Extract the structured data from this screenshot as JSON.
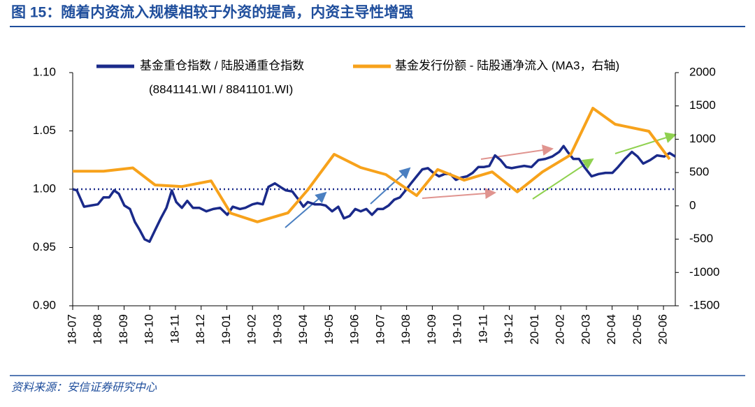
{
  "chart_data": {
    "type": "line",
    "title": "图 15：随着内资流入规模相较于外资的提高，内资主导性增强",
    "source": "资料来源：安信证券研究中心",
    "legend_note": "(8841141.WI / 8841101.WI)",
    "xlim": [
      0,
      23.46
    ],
    "xticks": [
      {
        "value": 0,
        "label": "18-07"
      },
      {
        "value": 1,
        "label": "18-08"
      },
      {
        "value": 2,
        "label": "18-09"
      },
      {
        "value": 3,
        "label": "18-10"
      },
      {
        "value": 4,
        "label": "18-11"
      },
      {
        "value": 5,
        "label": "18-12"
      },
      {
        "value": 6,
        "label": "19-01"
      },
      {
        "value": 7,
        "label": "19-02"
      },
      {
        "value": 8,
        "label": "19-03"
      },
      {
        "value": 9,
        "label": "19-04"
      },
      {
        "value": 10,
        "label": "19-05"
      },
      {
        "value": 11,
        "label": "19-06"
      },
      {
        "value": 12,
        "label": "19-07"
      },
      {
        "value": 13,
        "label": "19-08"
      },
      {
        "value": 14,
        "label": "19-09"
      },
      {
        "value": 15,
        "label": "19-10"
      },
      {
        "value": 16,
        "label": "19-11"
      },
      {
        "value": 17,
        "label": "19-12"
      },
      {
        "value": 18,
        "label": "20-01"
      },
      {
        "value": 19,
        "label": "20-02"
      },
      {
        "value": 20,
        "label": "20-03"
      },
      {
        "value": 21,
        "label": "20-04"
      },
      {
        "value": 22,
        "label": "20-05"
      },
      {
        "value": 23,
        "label": "20-06"
      }
    ],
    "ylim": [
      0.9,
      1.1
    ],
    "yticks": [
      {
        "value": 0.9,
        "label": "0.90"
      },
      {
        "value": 0.95,
        "label": "0.95"
      },
      {
        "value": 1.0,
        "label": "1.00"
      },
      {
        "value": 1.05,
        "label": "1.05"
      },
      {
        "value": 1.1,
        "label": "1.10"
      }
    ],
    "y2lim": [
      -1500,
      2000
    ],
    "y2ticks": [
      -1500,
      -1000,
      -500,
      0,
      500,
      1000,
      1500,
      2000
    ],
    "reference_line": 1.0,
    "series": [
      {
        "name": "基金重仓指数 / 陆股通重仓指数",
        "color": "#1a2a8a",
        "axis": "y",
        "x": [
          0,
          0.16,
          0.44,
          0.71,
          0.98,
          1.2,
          1.42,
          1.61,
          1.8,
          2.01,
          2.23,
          2.42,
          2.61,
          2.8,
          2.99,
          3.21,
          3.43,
          3.65,
          3.86,
          4.03,
          4.25,
          4.46,
          4.68,
          4.93,
          5.2,
          5.47,
          5.74,
          6.02,
          6.23,
          6.51,
          6.72,
          7.0,
          7.19,
          7.4,
          7.62,
          7.87,
          8.08,
          8.3,
          8.55,
          8.76,
          8.98,
          9.15,
          9.42,
          9.64,
          9.85,
          10.1,
          10.34,
          10.56,
          10.78,
          11.0,
          11.21,
          11.43,
          11.65,
          11.87,
          12.08,
          12.3,
          12.52,
          12.74,
          12.96,
          13.17,
          13.39,
          13.61,
          13.83,
          14.04,
          14.26,
          14.48,
          14.7,
          14.92,
          15.13,
          15.35,
          15.57,
          15.79,
          16.0,
          16.22,
          16.44,
          16.66,
          16.88,
          17.09,
          17.31,
          17.58,
          17.86,
          18.13,
          18.4,
          18.67,
          18.94,
          19.11,
          19.27,
          19.49,
          19.71,
          19.92,
          20.2,
          20.47,
          20.74,
          21.01,
          21.23,
          21.5,
          21.77,
          21.99,
          22.21,
          22.48,
          22.75,
          23.03,
          23.24,
          23.46
        ],
        "values": [
          1.0,
          0.999,
          0.985,
          0.986,
          0.987,
          0.993,
          0.993,
          0.999,
          0.996,
          0.986,
          0.983,
          0.972,
          0.965,
          0.957,
          0.955,
          0.965,
          0.975,
          0.984,
          0.999,
          0.989,
          0.984,
          0.99,
          0.984,
          0.984,
          0.981,
          0.983,
          0.984,
          0.978,
          0.985,
          0.983,
          0.984,
          0.987,
          0.988,
          0.987,
          1.002,
          1.005,
          1.002,
          0.999,
          0.998,
          0.992,
          0.985,
          0.989,
          0.987,
          0.987,
          0.986,
          0.981,
          0.985,
          0.975,
          0.977,
          0.983,
          0.981,
          0.983,
          0.978,
          0.983,
          0.983,
          0.986,
          0.991,
          0.993,
          0.999,
          1.005,
          1.011,
          1.017,
          1.018,
          1.014,
          1.011,
          1.013,
          1.013,
          1.008,
          1.01,
          1.011,
          1.014,
          1.019,
          1.019,
          1.02,
          1.029,
          1.025,
          1.019,
          1.018,
          1.019,
          1.02,
          1.019,
          1.025,
          1.026,
          1.028,
          1.032,
          1.037,
          1.032,
          1.026,
          1.026,
          1.019,
          1.011,
          1.013,
          1.014,
          1.014,
          1.019,
          1.026,
          1.032,
          1.028,
          1.022,
          1.025,
          1.029,
          1.028,
          1.031,
          1.028
        ]
      },
      {
        "name": "基金发行份额 - 陆股通净流入 (MA3，右轴)",
        "color": "#f7a21b",
        "axis": "y2",
        "x": [
          0,
          1.2,
          2.34,
          3.21,
          4.25,
          5.39,
          6.15,
          7.19,
          8.38,
          9.15,
          10.18,
          11.21,
          12.19,
          13.39,
          14.21,
          15.24,
          16.33,
          17.31,
          18.29,
          19.38,
          20.25,
          21.12,
          22.43,
          23.24
        ],
        "values": [
          520,
          520,
          570,
          313,
          290,
          375,
          -110,
          -240,
          -105,
          240,
          774,
          575,
          470,
          155,
          545,
          385,
          510,
          210,
          510,
          765,
          1466,
          1225,
          1120,
          700
        ]
      }
    ]
  }
}
